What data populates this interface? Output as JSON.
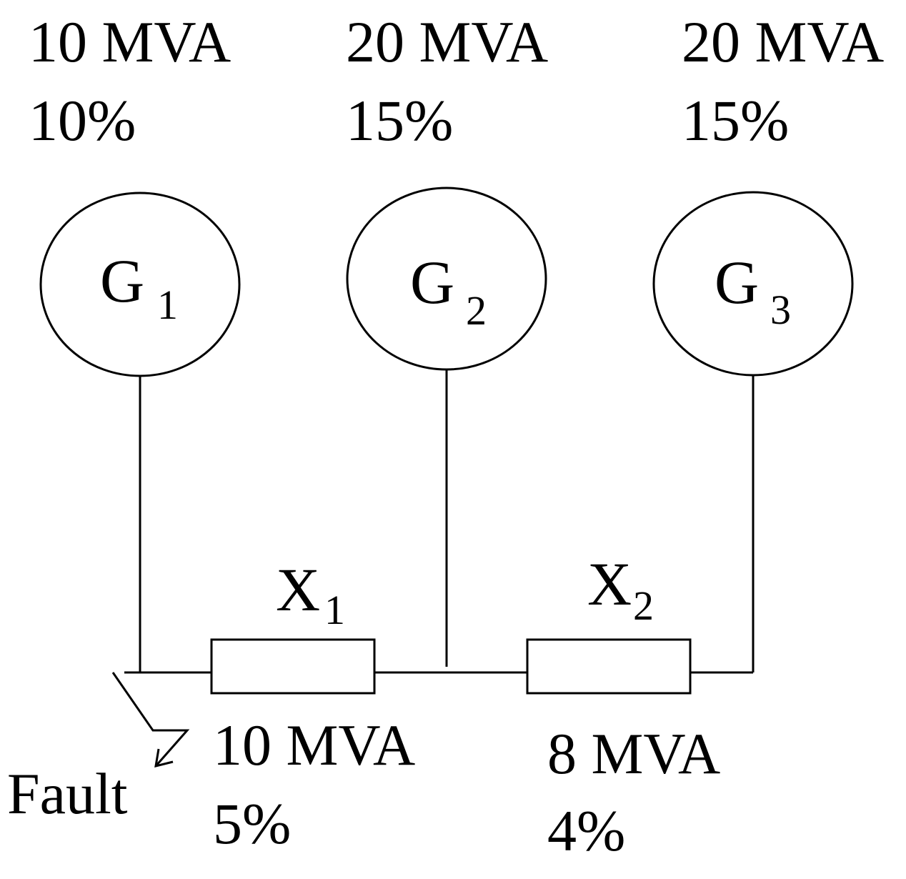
{
  "generators": [
    {
      "id": "G1",
      "letter": "G",
      "subscript": "1",
      "rating": "10 MVA",
      "reactance": "10%"
    },
    {
      "id": "G2",
      "letter": "G",
      "subscript": "2",
      "rating": "20 MVA",
      "reactance": "15%"
    },
    {
      "id": "G3",
      "letter": "G",
      "subscript": "3",
      "rating": "20 MVA",
      "reactance": "15%"
    }
  ],
  "reactors": [
    {
      "id": "X1",
      "letter": "X",
      "subscript": "1",
      "rating": "10 MVA",
      "reactance": "5%"
    },
    {
      "id": "X2",
      "letter": "X",
      "subscript": "2",
      "rating": "8 MVA",
      "reactance": "4%"
    }
  ],
  "fault": {
    "label": "Fault"
  },
  "colors": {
    "stroke": "#000000",
    "background": "#ffffff"
  }
}
